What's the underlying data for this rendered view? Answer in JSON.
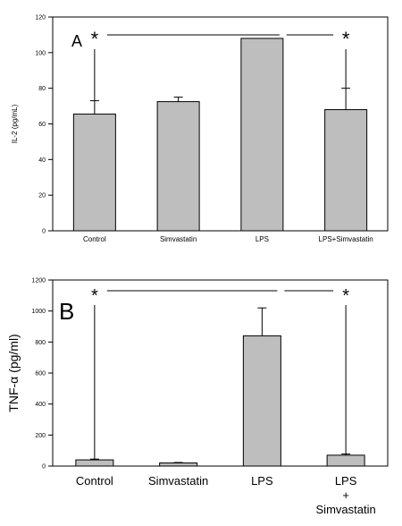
{
  "chart_data": [
    {
      "type": "bar",
      "panel_label": "A",
      "categories": [
        "Control",
        "Simvastatin",
        "LPS",
        "LPS+Simvastatin"
      ],
      "values": [
        65.5,
        72.5,
        108,
        68
      ],
      "error_plus": [
        7.5,
        2.5,
        0,
        12
      ],
      "ylabel": "IL-2  (pg/mL)",
      "ylim": [
        0,
        120
      ],
      "yticks": [
        0,
        20,
        40,
        60,
        80,
        100,
        120
      ],
      "bar_color": "#bebebe",
      "significance": {
        "marker": "*",
        "left_star_category": "Control",
        "right_star_category": "LPS+Simvastatin",
        "bracket_center": "LPS"
      }
    },
    {
      "type": "bar",
      "panel_label": "B",
      "categories": [
        "Control",
        "Simvastatin",
        "LPS",
        "LPS\n+\nSimvastatin"
      ],
      "category_lines": [
        [
          "Control"
        ],
        [
          "Simvastatin"
        ],
        [
          "LPS"
        ],
        [
          "LPS",
          "+",
          "Simvastatin"
        ]
      ],
      "values": [
        40,
        20,
        840,
        70
      ],
      "error_plus": [
        5,
        3,
        180,
        8
      ],
      "ylabel": "TNF-α (pg/ml)",
      "ylim": [
        0,
        1200
      ],
      "yticks": [
        0,
        200,
        400,
        600,
        800,
        1000,
        1200
      ],
      "bar_color": "#bebebe",
      "significance": {
        "marker": "*",
        "left_star_category": "Control",
        "right_star_category": "LPS\n+\nSimvastatin",
        "bracket_center": "LPS"
      }
    }
  ]
}
